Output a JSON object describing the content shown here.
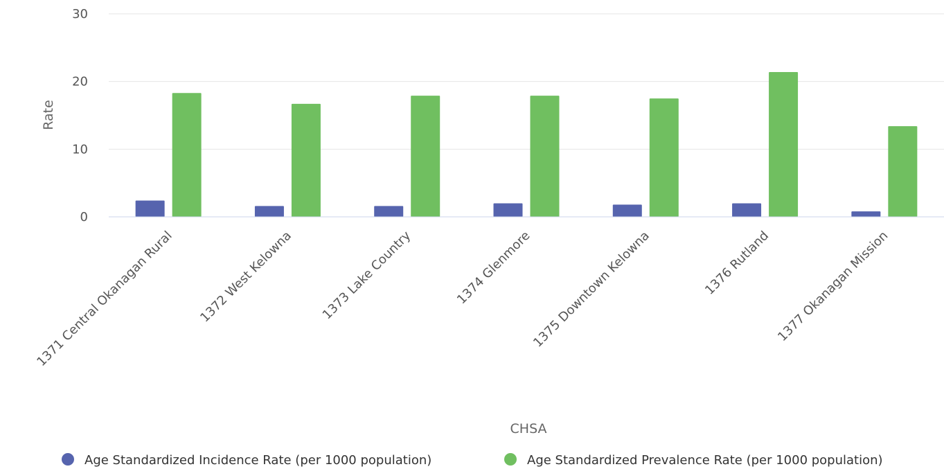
{
  "chart_data": {
    "type": "bar",
    "categories": [
      "1371 Central Okanagan Rural",
      "1372 West Kelowna",
      "1373 Lake Country",
      "1374 Glenmore",
      "1375 Downtown Kelowna",
      "1376 Rutland",
      "1377 Okanagan Mission"
    ],
    "series": [
      {
        "name": "Age Standardized Incidence Rate (per 1000 population)",
        "color": "#5664ae",
        "values": [
          2.4,
          1.6,
          1.6,
          2.0,
          1.8,
          2.0,
          0.8
        ]
      },
      {
        "name": "Age Standardized Prevalence Rate (per 1000 population)",
        "color": "#70bf60",
        "values": [
          18.3,
          16.7,
          17.9,
          17.9,
          17.5,
          21.4,
          13.4
        ]
      }
    ],
    "xlabel": "CHSA",
    "ylabel": "Rate",
    "ylim": [
      0,
      30
    ],
    "yticks": [
      0,
      10,
      20,
      30
    ],
    "grid": true,
    "legend_position": "bottom"
  }
}
